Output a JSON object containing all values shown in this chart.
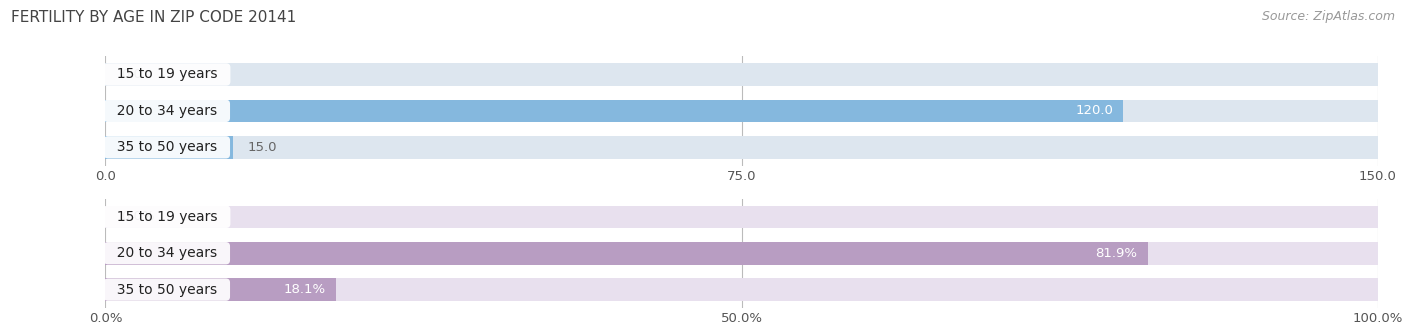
{
  "title": "FERTILITY BY AGE IN ZIP CODE 20141",
  "source": "Source: ZipAtlas.com",
  "top_chart": {
    "categories": [
      "15 to 19 years",
      "20 to 34 years",
      "35 to 50 years"
    ],
    "values": [
      0.0,
      120.0,
      15.0
    ],
    "xlim": [
      0,
      150
    ],
    "xticks": [
      0.0,
      75.0,
      150.0
    ],
    "xtick_labels": [
      "0.0",
      "75.0",
      "150.0"
    ],
    "bar_color": "#85B8DE",
    "bar_bg_color": "#DDE6EF",
    "label_inside_color": "#ffffff",
    "label_outside_color": "#666666"
  },
  "bottom_chart": {
    "categories": [
      "15 to 19 years",
      "20 to 34 years",
      "35 to 50 years"
    ],
    "values": [
      0.0,
      81.9,
      18.1
    ],
    "xlim": [
      0,
      100
    ],
    "xticks": [
      0.0,
      50.0,
      100.0
    ],
    "xtick_labels": [
      "0.0%",
      "50.0%",
      "100.0%"
    ],
    "bar_color": "#B89DC2",
    "bar_bg_color": "#E8E0EE",
    "label_inside_color": "#ffffff",
    "label_outside_color": "#666666"
  },
  "background_color": "#ffffff",
  "bar_height": 0.62,
  "label_fontsize": 9.5,
  "tick_fontsize": 9.5,
  "category_fontsize": 10,
  "title_fontsize": 11,
  "source_fontsize": 9
}
